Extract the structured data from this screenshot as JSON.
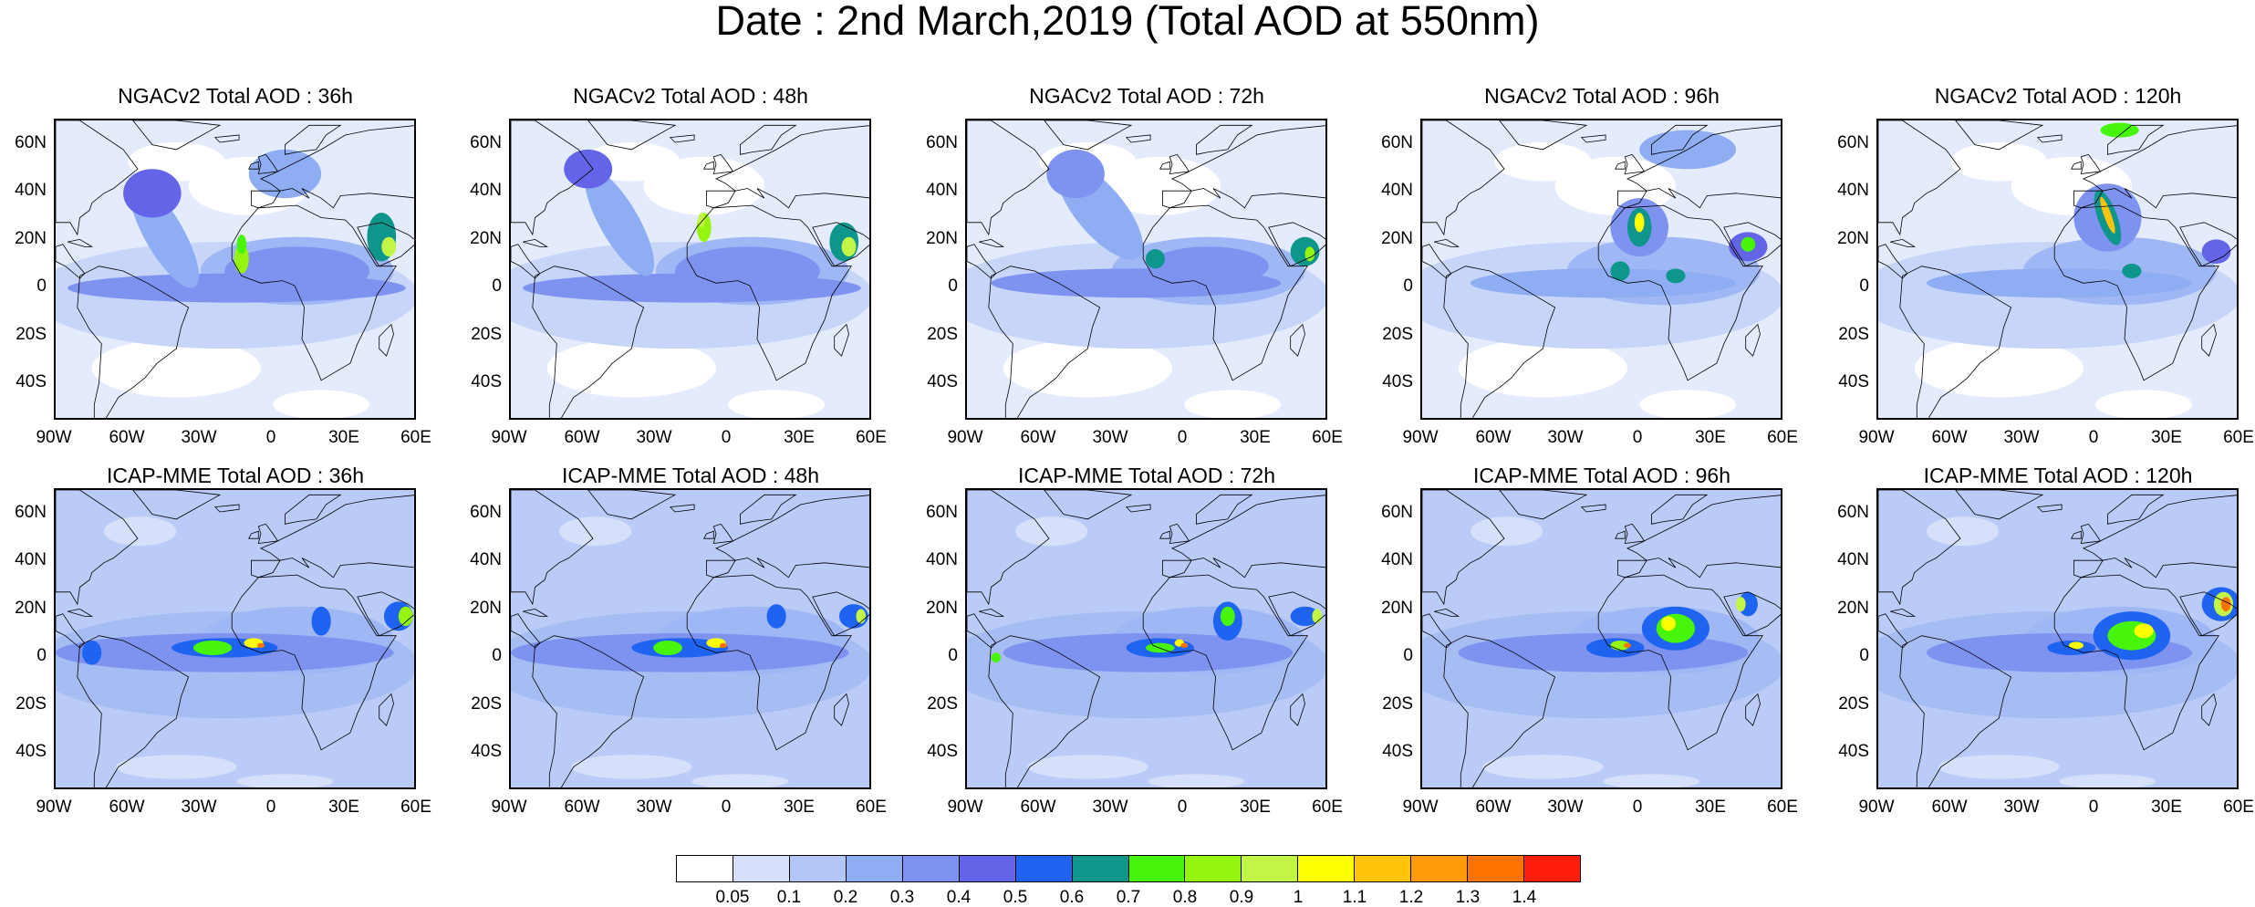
{
  "title": "Date : 2nd March,2019 (Total AOD at 550nm)",
  "panels": [
    {
      "title": "NGACv2 Total AOD : 36h",
      "model": "NGACv2",
      "lead": "36h"
    },
    {
      "title": "NGACv2 Total AOD : 48h",
      "model": "NGACv2",
      "lead": "48h"
    },
    {
      "title": "NGACv2 Total AOD : 72h",
      "model": "NGACv2",
      "lead": "72h"
    },
    {
      "title": "NGACv2 Total AOD : 96h",
      "model": "NGACv2",
      "lead": "96h"
    },
    {
      "title": "NGACv2 Total AOD : 120h",
      "model": "NGACv2",
      "lead": "120h"
    },
    {
      "title": "ICAP-MME Total AOD : 36h",
      "model": "ICAP-MME",
      "lead": "36h"
    },
    {
      "title": "ICAP-MME Total AOD : 48h",
      "model": "ICAP-MME",
      "lead": "48h"
    },
    {
      "title": "ICAP-MME Total AOD : 72h",
      "model": "ICAP-MME",
      "lead": "72h"
    },
    {
      "title": "ICAP-MME Total AOD : 96h",
      "model": "ICAP-MME",
      "lead": "96h"
    },
    {
      "title": "ICAP-MME Total AOD : 120h",
      "model": "ICAP-MME",
      "lead": "120h"
    }
  ],
  "lat_labels": [
    "60N",
    "40N",
    "20N",
    "0",
    "20S",
    "40S"
  ],
  "lon_labels": [
    "90W",
    "60W",
    "30W",
    "0",
    "30E",
    "60E"
  ],
  "map_extent": {
    "lon": [
      -90,
      60
    ],
    "lat": [
      -52,
      72
    ]
  },
  "colorbar": {
    "labels": [
      "0.05",
      "0.1",
      "0.2",
      "0.3",
      "0.4",
      "0.5",
      "0.6",
      "0.7",
      "0.8",
      "0.9",
      "1",
      "1.1",
      "1.2",
      "1.3",
      "1.4"
    ],
    "colors": [
      "#ffffff",
      "#d6e0fb",
      "#b3c6f5",
      "#8fadf3",
      "#7e92f0",
      "#6464e8",
      "#1e64f0",
      "#0f968c",
      "#46f50a",
      "#96f50f",
      "#c3f546",
      "#ffff00",
      "#ffc30a",
      "#ff9b0a",
      "#ff7300",
      "#ff1e0a"
    ]
  }
}
